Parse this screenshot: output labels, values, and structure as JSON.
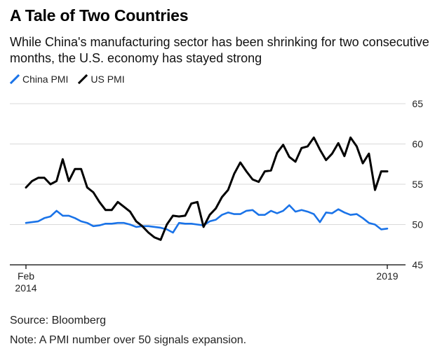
{
  "header": {
    "title": "A Tale of Two Countries",
    "subtitle": "While China's manufacturing sector has been shrinking for two consecutive months, the U.S. economy has stayed strong"
  },
  "footer": {
    "source": "Source: Bloomberg",
    "note": "Note: A PMI number over 50 signals expansion."
  },
  "colors": {
    "china": "#1a73e8",
    "us": "#000000",
    "grid": "#d9d9d9",
    "axis": "#000000"
  },
  "chart_data": {
    "type": "line",
    "title": "A Tale of Two Countries",
    "xlabel": "",
    "ylabel": "",
    "ylim": [
      45,
      65
    ],
    "yticks": [
      45,
      50,
      55,
      60,
      65
    ],
    "xlim": [
      0,
      60
    ],
    "xticks": [
      {
        "x": 0,
        "line1": "Feb",
        "line2": "2014"
      },
      {
        "x": 59,
        "line1": "2019",
        "line2": ""
      }
    ],
    "grid": true,
    "legend_position": "top-left",
    "series": [
      {
        "name": "China PMI",
        "color": "#1a73e8",
        "x": [
          0,
          1,
          2,
          3,
          4,
          5,
          6,
          7,
          8,
          9,
          10,
          11,
          12,
          13,
          14,
          15,
          16,
          17,
          18,
          19,
          20,
          21,
          22,
          23,
          24,
          25,
          26,
          27,
          28,
          29,
          30,
          31,
          32,
          33,
          34,
          35,
          36,
          37,
          38,
          39,
          40,
          41,
          42,
          43,
          44,
          45,
          46,
          47,
          48,
          49,
          50,
          51,
          52,
          53,
          54,
          55,
          56,
          57,
          58,
          59
        ],
        "values": [
          50.2,
          50.3,
          50.4,
          50.8,
          51.0,
          51.7,
          51.1,
          51.1,
          50.8,
          50.4,
          50.2,
          49.8,
          49.9,
          50.1,
          50.1,
          50.2,
          50.2,
          50.0,
          49.7,
          49.8,
          49.8,
          49.7,
          49.6,
          49.4,
          49.0,
          50.2,
          50.1,
          50.1,
          50.0,
          49.9,
          50.4,
          50.6,
          51.2,
          51.5,
          51.3,
          51.3,
          51.7,
          51.8,
          51.2,
          51.2,
          51.7,
          51.4,
          51.7,
          52.4,
          51.6,
          51.8,
          51.6,
          51.3,
          50.3,
          51.5,
          51.4,
          51.9,
          51.5,
          51.2,
          51.3,
          50.8,
          50.2,
          50.0,
          49.4,
          49.5
        ]
      },
      {
        "name": "US PMI",
        "color": "#000000",
        "x": [
          0,
          1,
          2,
          3,
          4,
          5,
          6,
          7,
          8,
          9,
          10,
          11,
          12,
          13,
          14,
          15,
          16,
          17,
          18,
          19,
          20,
          21,
          22,
          23,
          24,
          25,
          26,
          27,
          28,
          29,
          30,
          31,
          32,
          33,
          34,
          35,
          36,
          37,
          38,
          39,
          40,
          41,
          42,
          43,
          44,
          45,
          46,
          47,
          48,
          49,
          50,
          51,
          52,
          53,
          54,
          55,
          56,
          57,
          58,
          59
        ],
        "values": [
          54.6,
          55.4,
          55.8,
          55.8,
          55.0,
          55.4,
          58.1,
          55.4,
          56.9,
          56.9,
          54.6,
          54.0,
          52.8,
          51.8,
          51.8,
          52.8,
          52.2,
          51.6,
          50.4,
          49.8,
          49.0,
          48.4,
          48.1,
          50.0,
          51.1,
          51.0,
          51.1,
          52.6,
          52.8,
          49.7,
          51.2,
          52.0,
          53.4,
          54.3,
          56.3,
          57.7,
          56.6,
          55.6,
          55.3,
          56.6,
          56.7,
          58.9,
          59.9,
          58.4,
          57.8,
          59.5,
          59.7,
          60.8,
          59.3,
          58.0,
          58.8,
          60.1,
          58.5,
          60.8,
          59.7,
          57.6,
          58.8,
          54.3,
          56.6,
          56.6
        ]
      }
    ]
  }
}
